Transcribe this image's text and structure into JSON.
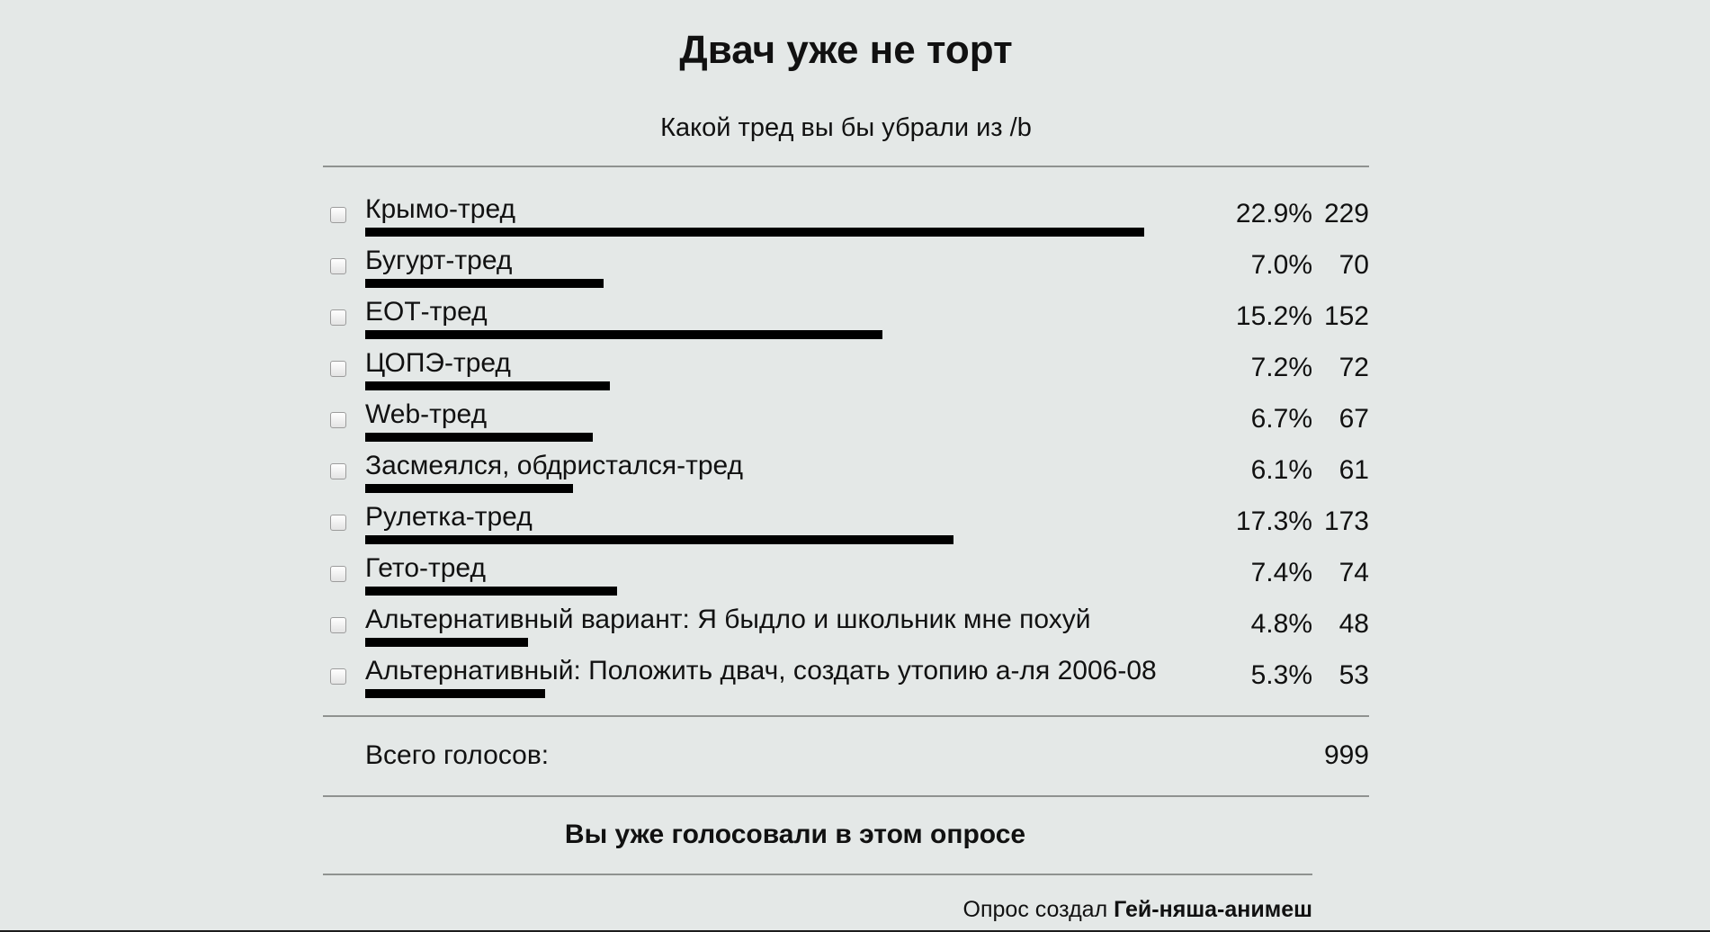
{
  "poll": {
    "title": "Двач уже не торт",
    "question": "Какой тред вы бы убрали из /b",
    "options": [
      {
        "label": "Крымо-тред",
        "percent": "22.9%",
        "count": "229",
        "share": 0.229
      },
      {
        "label": "Бугурт-тред",
        "percent": "7.0%",
        "count": "70",
        "share": 0.07
      },
      {
        "label": "ЕОТ-тред",
        "percent": "15.2%",
        "count": "152",
        "share": 0.152
      },
      {
        "label": "ЦОПЭ-тред",
        "percent": "7.2%",
        "count": "72",
        "share": 0.072
      },
      {
        "label": "Web-тред",
        "percent": "6.7%",
        "count": "67",
        "share": 0.067
      },
      {
        "label": "Засмеялся, обдристался-тред",
        "percent": "6.1%",
        "count": "61",
        "share": 0.061
      },
      {
        "label": "Рулетка-тред",
        "percent": "17.3%",
        "count": "173",
        "share": 0.173
      },
      {
        "label": "Гето-тред",
        "percent": "7.4%",
        "count": "74",
        "share": 0.074
      },
      {
        "label": "Альтернативный вариант: Я быдло и школьник мне похуй",
        "percent": "4.8%",
        "count": "48",
        "share": 0.048
      },
      {
        "label": "Альтернативный: Положить двач, создать утопию а-ля 2006-08",
        "percent": "5.3%",
        "count": "53",
        "share": 0.053
      }
    ],
    "total_label": "Всего голосов:",
    "total_value": "999",
    "voted_message": "Вы уже голосовали в этом опросе",
    "creator_prefix": "Опрос создал",
    "creator_name": "Гей-няша-анимеш"
  },
  "colors": {
    "background": "#e4e8e7",
    "bar": "#000000",
    "rule": "#8f9290"
  }
}
